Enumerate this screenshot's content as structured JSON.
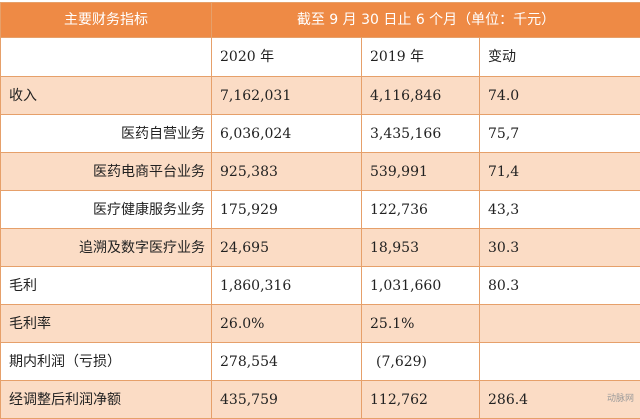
{
  "header": {
    "indicator_label": "主要财务指标",
    "period_label": "截至 9 月 30 日止 6 个月（单位：千元）"
  },
  "columns": [
    "2020 年",
    "2019 年",
    "变动"
  ],
  "rows": [
    {
      "label": "收入",
      "indent": false,
      "y2020": "7,162,031",
      "y2019": "4,116,846",
      "change": "74.0"
    },
    {
      "label": "医药自营业务",
      "indent": true,
      "y2020": "6,036,024",
      "y2019": "3,435,166",
      "change": "75,7"
    },
    {
      "label": "医药电商平台业务",
      "indent": true,
      "y2020": "925,383",
      "y2019": "539,991",
      "change": "71,4"
    },
    {
      "label": "医疗健康服务业务",
      "indent": true,
      "y2020": "175,929",
      "y2019": "122,736",
      "change": "43,3"
    },
    {
      "label": "追溯及数字医疗业务",
      "indent": true,
      "y2020": "24,695",
      "y2019": "18,953",
      "change": "30.3"
    },
    {
      "label": "毛利",
      "indent": false,
      "y2020": "1,860,316",
      "y2019": "1,031,660",
      "change": "80.3"
    },
    {
      "label": "毛利率",
      "indent": false,
      "y2020": "26.0%",
      "y2019": "25.1%",
      "change": ""
    },
    {
      "label": "期内利润（亏损）",
      "indent": false,
      "y2020": "278,554",
      "y2019": "(7,629)",
      "change": ""
    },
    {
      "label": "经调整后利润净额",
      "indent": false,
      "y2020": "435,759",
      "y2019": "112,762",
      "change": "286.4"
    }
  ],
  "watermark": "动脉网"
}
